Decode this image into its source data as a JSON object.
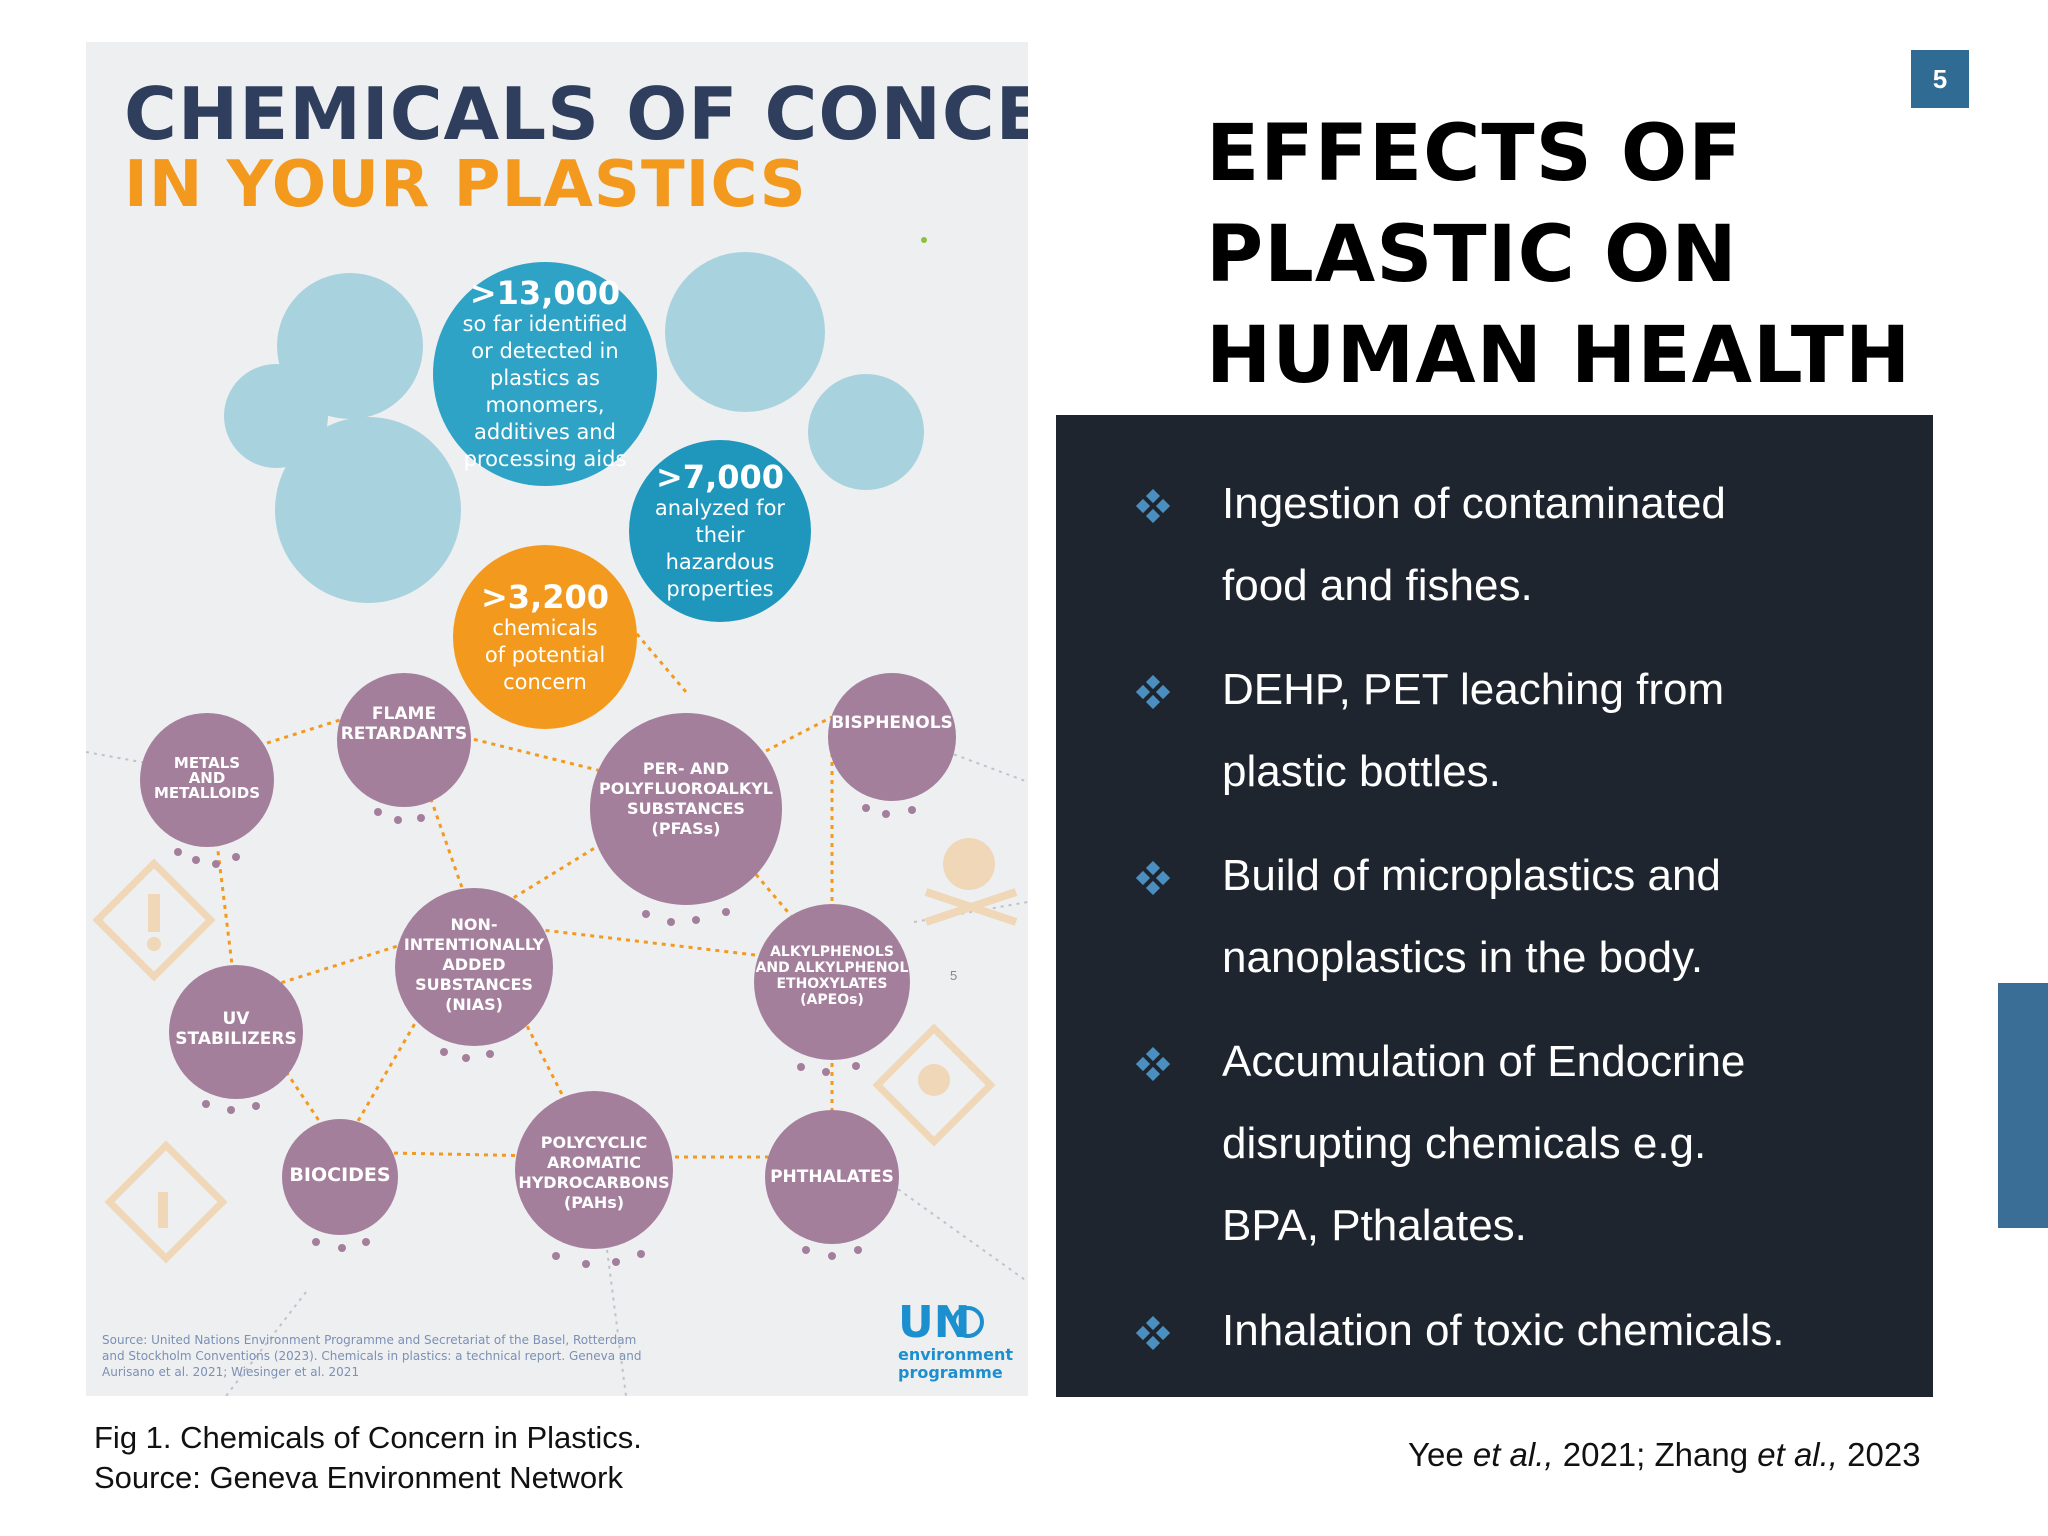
{
  "slide_number": "5",
  "title_lines": [
    "EFFECTS OF",
    "PLASTIC ON",
    "HUMAN HEALTH"
  ],
  "bullets": [
    {
      "line1": "Ingestion of contaminated",
      "line2": "food and fishes."
    },
    {
      "line1": "DEHP, PET leaching from",
      "line2": "plastic bottles."
    },
    {
      "line1": "Build of microplastics and",
      "line2": "nanoplastics in the body."
    },
    {
      "line1": "Accumulation of Endocrine",
      "line2": "disrupting chemicals e.g.",
      "line3": "BPA, Pthalates."
    },
    {
      "line1": "Inhalation of toxic chemicals."
    }
  ],
  "bullet_icon": "four-diamond-icon",
  "caption": {
    "line1": "Fig 1. Chemicals of Concern in Plastics.",
    "line2": "Source: Geneva Environment Network"
  },
  "references": {
    "author1": "Yee",
    "etal1": "et al.,",
    "year1": "2021;",
    "author2": "Zhang",
    "etal2": "et al.,",
    "year2": "2023"
  },
  "infographic": {
    "title_line1": "CHEMICALS OF CONCERN",
    "title_line2": "IN YOUR PLASTICS",
    "stats": [
      {
        "number": ">13,000",
        "text": "so far identified or detected in plastics as monomers, additives and processing aids"
      },
      {
        "number": ">7,000",
        "text": "analyzed for their hazardous properties"
      },
      {
        "number": ">3,200",
        "text": "chemicals of potential concern"
      }
    ],
    "groups": {
      "metals": "METALS\nAND\nMETALLOIDS",
      "flame": "FLAME\nRETARDANTS",
      "pfas": "PER- AND\nPOLYFLUOROALKYL\nSUBSTANCES\n(PFASs)",
      "bisphenols": "BISPHENOLS",
      "nias": "NON-\nINTENTIONALLY\nADDED\nSUBSTANCES\n(NIAS)",
      "apeo": "ALKYLPHENOLS\nAND ALKYLPHENOL\nETHOXYLATES\n(APEOs)",
      "uv": "UV\nSTABILIZERS",
      "biocides": "BIOCIDES",
      "pah": "POLYCYCLIC\nAROMATIC\nHYDROCARBONS\n(PAHs)",
      "phthalates": "PHTHALATES"
    },
    "source_note": "Source: United Nations Environment Programme and Secretariat of the Basel, Rotterdam and Stockholm Conventions (2023). Chemicals in plastics: a technical report. Geneva and Aurisano et al. 2021; Wiesinger et al. 2021",
    "un_logo_text": "UN",
    "un_sub1": "environment",
    "un_sub2": "programme",
    "page_mark": "5"
  }
}
